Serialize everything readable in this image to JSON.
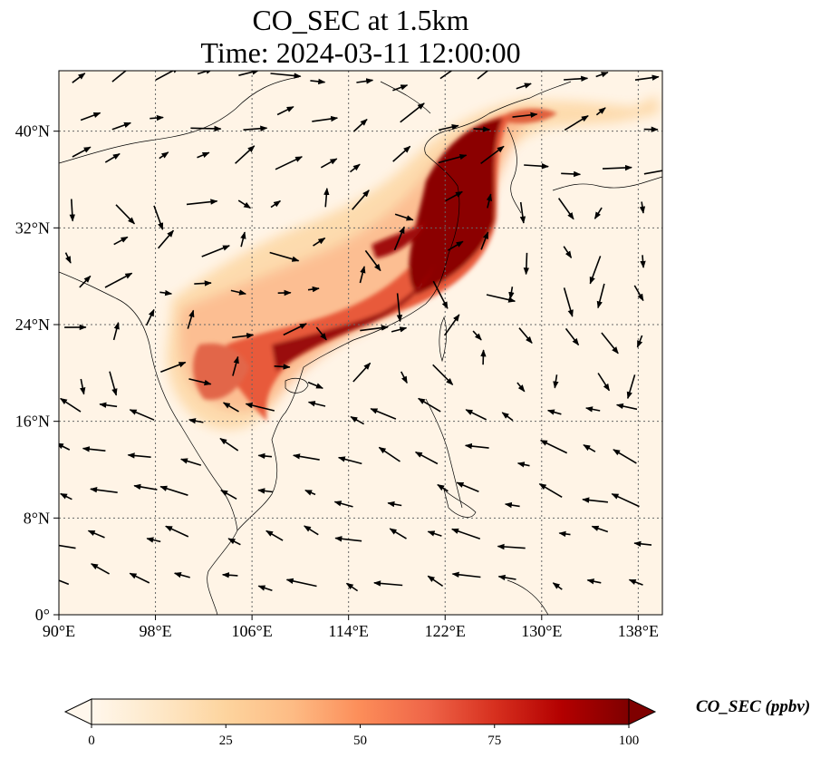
{
  "title": {
    "line1": "CO_SEC at 1.5km",
    "line2": "Time: 2024-03-11 12:00:00"
  },
  "map": {
    "lon_range": [
      90,
      140
    ],
    "lat_range": [
      0,
      45
    ],
    "lon_ticks": [
      "90°E",
      "98°E",
      "106°E",
      "114°E",
      "122°E",
      "130°E",
      "138°E"
    ],
    "lat_ticks": [
      "0°",
      "8°N",
      "16°N",
      "24°N",
      "32°N",
      "40°N"
    ],
    "gridlines": true,
    "field_name": "CO_SEC",
    "units": "ppbv",
    "colormap": "OrRd",
    "vectors": "wind arrows"
  },
  "colorbar": {
    "label": "CO_SEC (ppbv)",
    "ticks": [
      "0",
      "25",
      "50",
      "75",
      "100"
    ],
    "min": 0,
    "max": 100,
    "extend": "both",
    "colors": [
      "#fff7ec",
      "#fee8c8",
      "#fdd49e",
      "#fdbb84",
      "#fc8d59",
      "#ef6548",
      "#d7301f",
      "#b30000",
      "#7f0000"
    ]
  }
}
